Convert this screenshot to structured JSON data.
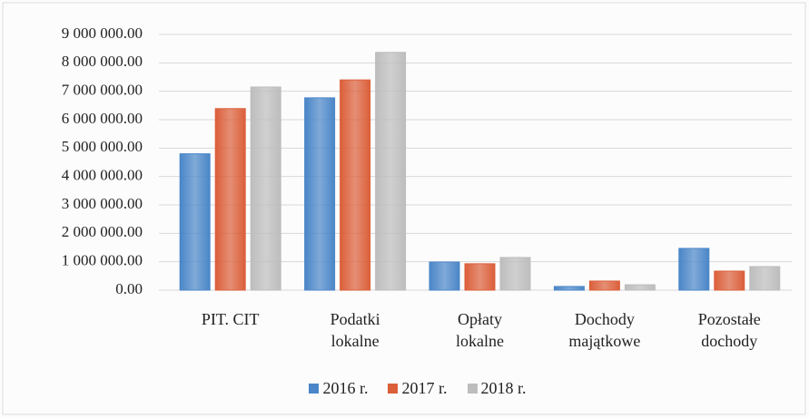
{
  "chart_data": {
    "type": "bar",
    "categories": [
      "PIT. CIT",
      "Podatki\nlokalne",
      "Opłaty\nlokalne",
      "Dochody\nmajątkowe",
      "Pozostałe\ndochody"
    ],
    "series": [
      {
        "name": "2016 r.",
        "color": "#4a86c8",
        "values": [
          4800000,
          6770000,
          990000,
          130000,
          1470000
        ]
      },
      {
        "name": "2017 r.",
        "color": "#db5f3a",
        "values": [
          6390000,
          7400000,
          930000,
          320000,
          670000
        ]
      },
      {
        "name": "2018 r.",
        "color": "#bdbdbd",
        "values": [
          7150000,
          8370000,
          1150000,
          190000,
          830000
        ]
      }
    ],
    "ylim": [
      0,
      9000000
    ],
    "yticks": [
      {
        "value": 0,
        "label": "0.00"
      },
      {
        "value": 1000000,
        "label": "1 000 000.00"
      },
      {
        "value": 2000000,
        "label": "2 000 000.00"
      },
      {
        "value": 3000000,
        "label": "3 000 000.00"
      },
      {
        "value": 4000000,
        "label": "4 000 000.00"
      },
      {
        "value": 5000000,
        "label": "5 000 000.00"
      },
      {
        "value": 6000000,
        "label": "6 000 000.00"
      },
      {
        "value": 7000000,
        "label": "7 000 000.00"
      },
      {
        "value": 8000000,
        "label": "8 000 000.00"
      },
      {
        "value": 9000000,
        "label": "9 000 000.00"
      }
    ],
    "grid": true,
    "legend": "bottom"
  }
}
